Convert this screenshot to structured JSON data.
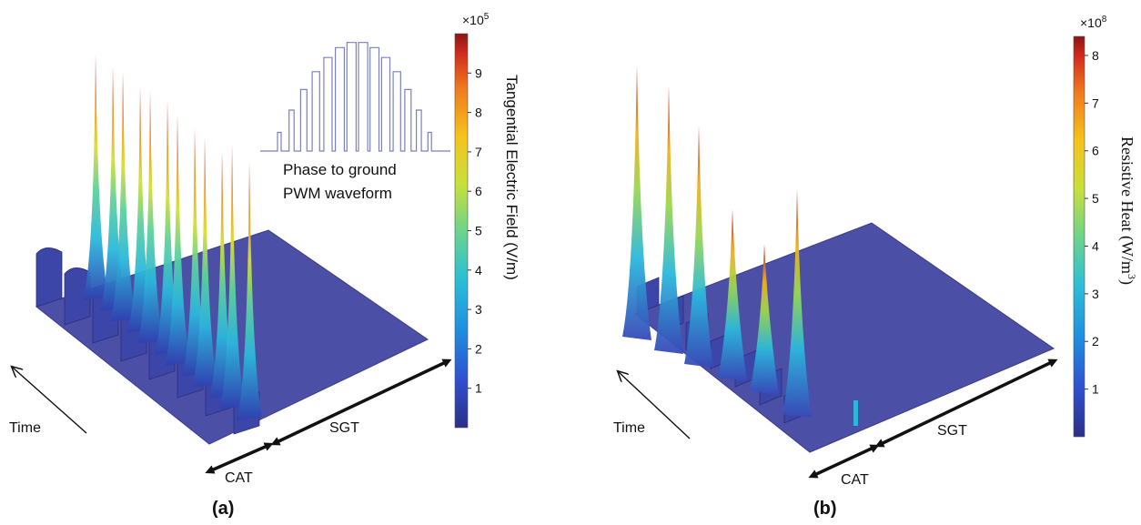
{
  "panel_a": {
    "caption": "(a)",
    "colorbar_multiplier": "×10",
    "colorbar_exponent": "5",
    "colorbar_title": "Tangential Electric Field (V/m)",
    "colorbar_ticks": [
      "1",
      "2",
      "3",
      "4",
      "5",
      "6",
      "7",
      "8",
      "9"
    ],
    "inset_label_line1": "Phase to ground",
    "inset_label_line2": "PWM waveform",
    "time_label": "Time",
    "cat_label": "CAT",
    "sgt_label": "SGT"
  },
  "panel_b": {
    "caption": "(b)",
    "colorbar_multiplier": "×10",
    "colorbar_exponent": "8",
    "colorbar_title": "Resistive Heat (W/m",
    "colorbar_title_sup": "3",
    "colorbar_title_end": ")",
    "colorbar_ticks": [
      "1",
      "2",
      "3",
      "4",
      "5",
      "6",
      "7",
      "8"
    ],
    "time_label": "Time",
    "cat_label": "CAT",
    "sgt_label": "SGT"
  },
  "colors": {
    "plate": "#4b4fa6",
    "plate_edge": "#3a3d8c",
    "arrow": "#111111",
    "inset_line": "#7a80c0",
    "colormap": [
      "#2b2f86",
      "#2f4fcf",
      "#1f8fe0",
      "#2bc0d6",
      "#6dd48a",
      "#c8e03a",
      "#f6c31b",
      "#f07a1e",
      "#d22a1e",
      "#8c1414"
    ]
  }
}
